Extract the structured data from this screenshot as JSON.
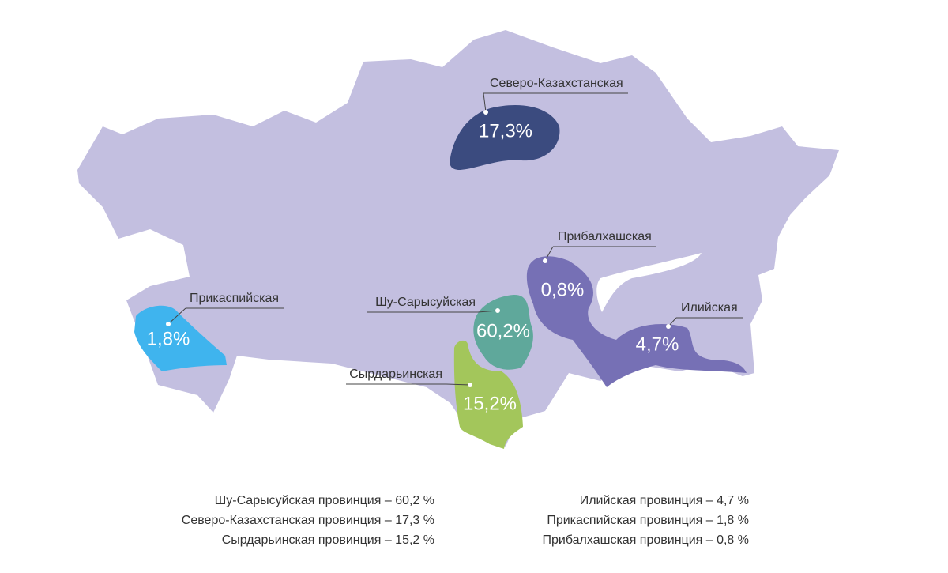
{
  "regions": [
    {
      "name": "Северо-Казахстанская",
      "label": "17,3%"
    },
    {
      "name": "Прибалхашская",
      "label": "0,8%"
    },
    {
      "name": "Шу-Сарысуйская",
      "label": "60,2%"
    },
    {
      "name": "Прикаспийская",
      "label": "1,8%"
    },
    {
      "name": "Илийская",
      "label": "4,7%"
    },
    {
      "name": "Сырдарьинская",
      "label": "15,2%"
    }
  ],
  "legend": {
    "left": [
      "Шу-Сарысуйская провинция – 60,2 %",
      "Северо-Казахстанская провинция – 17,3 %",
      "Сырдарьинская провинция – 15,2 %"
    ],
    "right": [
      "Илийская провинция – 4,7 %",
      "Прикаспийская провинция – 1,8 %",
      "Прибалхашская провинция – 0,8 %"
    ]
  }
}
